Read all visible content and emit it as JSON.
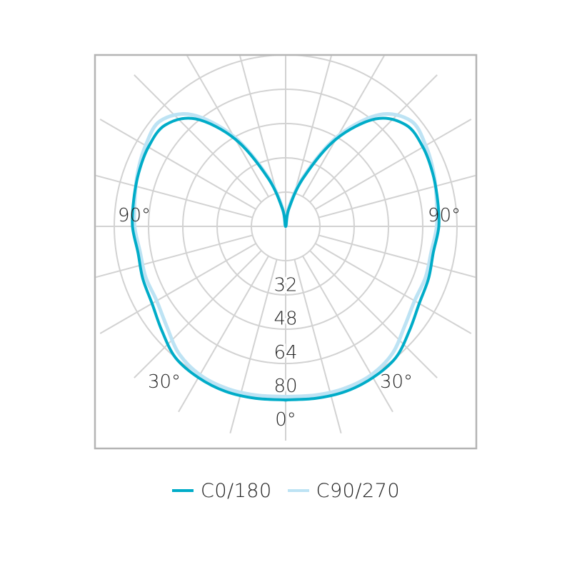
{
  "chart_data": {
    "type": "polar",
    "angular_labels": {
      "left_90": "90°",
      "right_90": "90°",
      "left_30": "30°",
      "right_30": "30°",
      "bottom_0": "0°"
    },
    "radial_tick_labels": [
      "32",
      "48",
      "64",
      "80"
    ],
    "radial_ticks": [
      16,
      32,
      48,
      64,
      80
    ],
    "rmax": 80,
    "angle_step_deg": 15,
    "grid": true,
    "legend_position": "bottom",
    "series": [
      {
        "name": "C0/180",
        "color": "#00acc8",
        "angles": [
          0,
          10,
          20,
          30,
          40,
          50,
          60,
          70,
          80,
          90,
          100,
          110,
          120,
          130,
          140,
          150,
          160,
          170,
          180
        ],
        "values": [
          81,
          81.5,
          82,
          81.5,
          80,
          75.5,
          72,
          71,
          70,
          71.5,
          72,
          73,
          74,
          73.5,
          65.5,
          47,
          24,
          8,
          0
        ]
      },
      {
        "name": "C90/270",
        "color": "#bde3f4",
        "angles": [
          0,
          10,
          20,
          30,
          40,
          50,
          60,
          70,
          80,
          90,
          100,
          110,
          120,
          130,
          140,
          150,
          160,
          170,
          180
        ],
        "values": [
          79.5,
          80,
          80.5,
          80,
          77.5,
          72.5,
          69.5,
          69.5,
          69,
          70.5,
          71.5,
          73.5,
          75.5,
          76.5,
          68,
          48.5,
          25,
          9,
          0
        ]
      }
    ]
  }
}
